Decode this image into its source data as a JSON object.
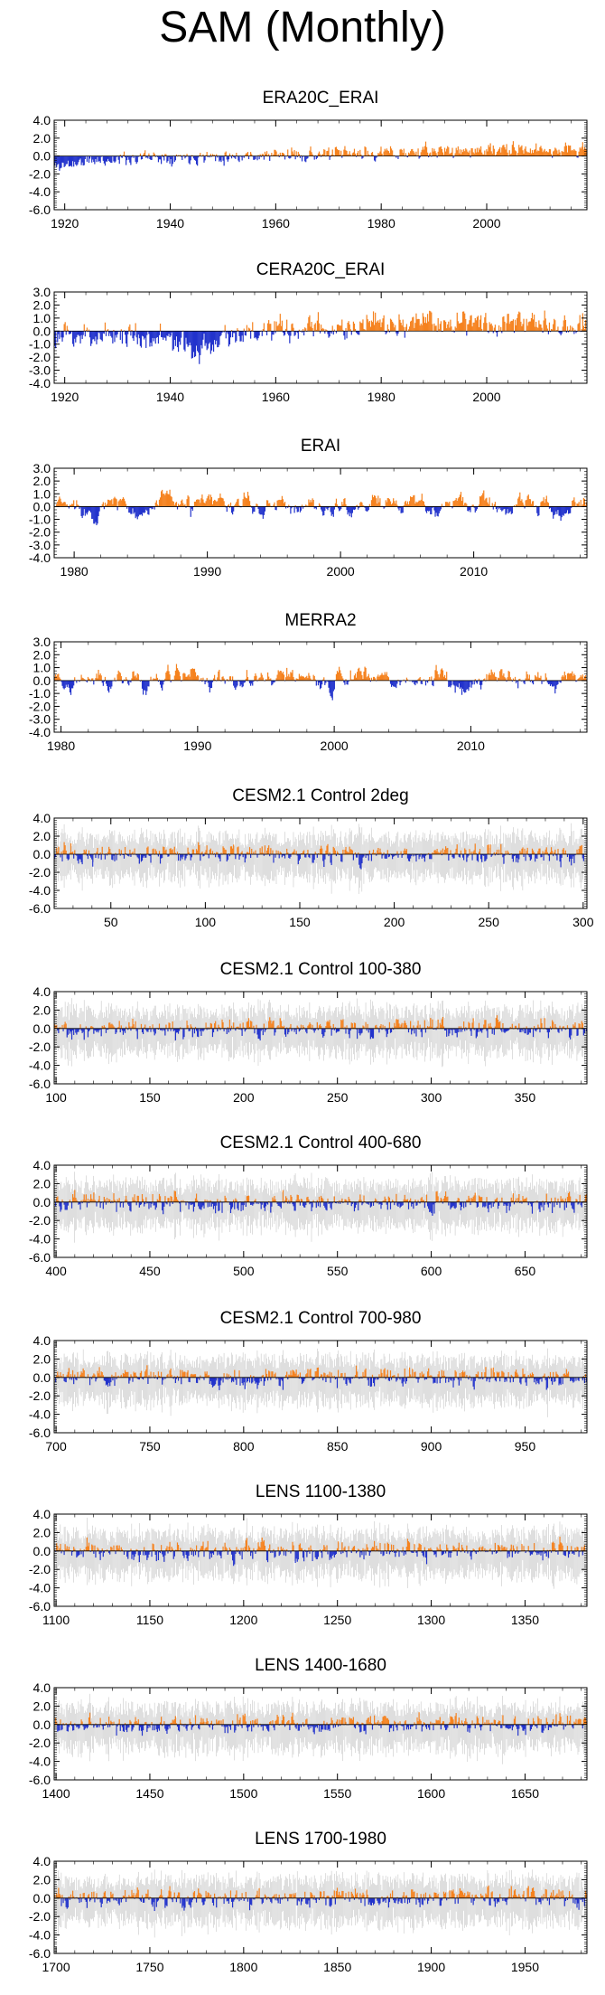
{
  "title": "SAM (Monthly)",
  "colors": {
    "positive": "#f5821f",
    "negative": "#2233cc",
    "spread": "#bdbdbd",
    "axis": "#000000"
  },
  "chart_data": [
    {
      "type": "bar",
      "title": "ERA20C_ERAI",
      "x_range": [
        1918,
        2019
      ],
      "ylim": [
        -6,
        4
      ],
      "y_ticks": [
        4,
        2,
        0,
        -2,
        -4,
        -6
      ],
      "y_tick_labels": [
        "4.0",
        "2.0",
        "0.0",
        "-2.0",
        "-4.0",
        "-6.0"
      ],
      "x_ticks": [
        1920,
        1940,
        1960,
        1980,
        2000
      ],
      "x_tick_labels": [
        "1920",
        "1940",
        "1960",
        "1980",
        "2000"
      ],
      "bias": [
        [
          1918,
          -1.2
        ],
        [
          1924,
          -0.6
        ],
        [
          1935,
          -0.1
        ],
        [
          1950,
          0.0
        ],
        [
          1970,
          0.2
        ],
        [
          1985,
          0.4
        ],
        [
          1995,
          0.6
        ],
        [
          2019,
          0.7
        ]
      ],
      "amp": 0.55,
      "spread": false,
      "seed": 11
    },
    {
      "type": "bar",
      "title": "CERA20C_ERAI",
      "x_range": [
        1918,
        2019
      ],
      "ylim": [
        -4,
        3
      ],
      "y_ticks": [
        3,
        2,
        1,
        0,
        -1,
        -2,
        -3,
        -4
      ],
      "y_tick_labels": [
        "3.0",
        "2.0",
        "1.0",
        "0.0",
        "-1.0",
        "-2.0",
        "-3.0",
        "-4.0"
      ],
      "x_ticks": [
        1920,
        1940,
        1960,
        1980,
        2000
      ],
      "x_tick_labels": [
        "1920",
        "1940",
        "1960",
        "1980",
        "2000"
      ],
      "bias": [
        [
          1918,
          -0.5
        ],
        [
          1930,
          -0.2
        ],
        [
          1940,
          -0.6
        ],
        [
          1944,
          -1.6
        ],
        [
          1947,
          -1.2
        ],
        [
          1950,
          -0.3
        ],
        [
          1965,
          0.1
        ],
        [
          1980,
          0.4
        ],
        [
          1995,
          0.8
        ],
        [
          2019,
          0.6
        ]
      ],
      "amp": 0.7,
      "spread": false,
      "seed": 23
    },
    {
      "type": "bar",
      "title": "ERAI",
      "x_range": [
        1978.5,
        2018.5
      ],
      "ylim": [
        -4,
        3
      ],
      "y_ticks": [
        3,
        2,
        1,
        0,
        -1,
        -2,
        -3,
        -4
      ],
      "y_tick_labels": [
        "3.0",
        "2.0",
        "1.0",
        "0.0",
        "-1.0",
        "-2.0",
        "-3.0",
        "-4.0"
      ],
      "x_ticks": [
        1980,
        1990,
        2000,
        2010
      ],
      "x_tick_labels": [
        "1980",
        "1990",
        "2000",
        "2010"
      ],
      "bias": [
        [
          1978.5,
          0.0
        ],
        [
          2018.5,
          0.1
        ]
      ],
      "amp": 1.0,
      "spread": false,
      "seed": 37,
      "smooth": true
    },
    {
      "type": "bar",
      "title": "MERRA2",
      "x_range": [
        1979.5,
        2018.5
      ],
      "ylim": [
        -4,
        3
      ],
      "y_ticks": [
        3,
        2,
        1,
        0,
        -1,
        -2,
        -3,
        -4
      ],
      "y_tick_labels": [
        "3.0",
        "2.0",
        "1.0",
        "0.0",
        "-1.0",
        "-2.0",
        "-3.0",
        "-4.0"
      ],
      "x_ticks": [
        1980,
        1990,
        2000,
        2010
      ],
      "x_tick_labels": [
        "1980",
        "1990",
        "2000",
        "2010"
      ],
      "bias": [
        [
          1979.5,
          0.0
        ],
        [
          2018.5,
          0.1
        ]
      ],
      "amp": 1.0,
      "spread": false,
      "seed": 41,
      "smooth": true
    },
    {
      "type": "bar",
      "title": "CESM2.1 Control 2deg",
      "x_range": [
        20,
        302
      ],
      "ylim": [
        -6,
        4
      ],
      "y_ticks": [
        4,
        2,
        0,
        -2,
        -4,
        -6
      ],
      "y_tick_labels": [
        "4.0",
        "2.0",
        "0.0",
        "-2.0",
        "-4.0",
        "-6.0"
      ],
      "x_ticks": [
        50,
        100,
        150,
        200,
        250,
        300
      ],
      "x_tick_labels": [
        "50",
        "100",
        "150",
        "200",
        "250",
        "300"
      ],
      "bias": [
        [
          20,
          0.0
        ],
        [
          302,
          0.0
        ]
      ],
      "amp": 0.75,
      "spread": true,
      "seed": 53
    },
    {
      "type": "bar",
      "title": "CESM2.1 Control 100-380",
      "x_range": [
        99,
        383
      ],
      "ylim": [
        -6,
        4
      ],
      "y_ticks": [
        4,
        2,
        0,
        -2,
        -4,
        -6
      ],
      "y_tick_labels": [
        "4.0",
        "2.0",
        "0.0",
        "-2.0",
        "-4.0",
        "-6.0"
      ],
      "x_ticks": [
        100,
        150,
        200,
        250,
        300,
        350
      ],
      "x_tick_labels": [
        "100",
        "150",
        "200",
        "250",
        "300",
        "350"
      ],
      "bias": [
        [
          99,
          0.0
        ],
        [
          383,
          0.0
        ]
      ],
      "amp": 0.75,
      "spread": true,
      "seed": 67
    },
    {
      "type": "bar",
      "title": "CESM2.1 Control 400-680",
      "x_range": [
        399,
        683
      ],
      "ylim": [
        -6,
        4
      ],
      "y_ticks": [
        4,
        2,
        0,
        -2,
        -4,
        -6
      ],
      "y_tick_labels": [
        "4.0",
        "2.0",
        "0.0",
        "-2.0",
        "-4.0",
        "-6.0"
      ],
      "x_ticks": [
        400,
        450,
        500,
        550,
        600,
        650
      ],
      "x_tick_labels": [
        "400",
        "450",
        "500",
        "550",
        "600",
        "650"
      ],
      "bias": [
        [
          399,
          0.0
        ],
        [
          683,
          0.0
        ]
      ],
      "amp": 0.75,
      "spread": true,
      "seed": 71
    },
    {
      "type": "bar",
      "title": "CESM2.1 Control 700-980",
      "x_range": [
        699,
        983
      ],
      "ylim": [
        -6,
        4
      ],
      "y_ticks": [
        4,
        2,
        0,
        -2,
        -4,
        -6
      ],
      "y_tick_labels": [
        "4.0",
        "2.0",
        "0.0",
        "-2.0",
        "-4.0",
        "-6.0"
      ],
      "x_ticks": [
        700,
        750,
        800,
        850,
        900,
        950
      ],
      "x_tick_labels": [
        "700",
        "750",
        "800",
        "850",
        "900",
        "950"
      ],
      "bias": [
        [
          699,
          0.0
        ],
        [
          983,
          0.0
        ]
      ],
      "amp": 0.75,
      "spread": true,
      "seed": 83
    },
    {
      "type": "bar",
      "title": "LENS 1100-1380",
      "x_range": [
        1099,
        1383
      ],
      "ylim": [
        -6,
        4
      ],
      "y_ticks": [
        4,
        2,
        0,
        -2,
        -4,
        -6
      ],
      "y_tick_labels": [
        "4.0",
        "2.0",
        "0.0",
        "-2.0",
        "-4.0",
        "-6.0"
      ],
      "x_ticks": [
        1100,
        1150,
        1200,
        1250,
        1300,
        1350
      ],
      "x_tick_labels": [
        "1100",
        "1150",
        "1200",
        "1250",
        "1300",
        "1350"
      ],
      "bias": [
        [
          1099,
          0.0
        ],
        [
          1383,
          0.0
        ]
      ],
      "amp": 0.75,
      "spread": true,
      "seed": 97
    },
    {
      "type": "bar",
      "title": "LENS 1400-1680",
      "x_range": [
        1399,
        1683
      ],
      "ylim": [
        -6,
        4
      ],
      "y_ticks": [
        4,
        2,
        0,
        -2,
        -4,
        -6
      ],
      "y_tick_labels": [
        "4.0",
        "2.0",
        "0.0",
        "-2.0",
        "-4.0",
        "-6.0"
      ],
      "x_ticks": [
        1400,
        1450,
        1500,
        1550,
        1600,
        1650
      ],
      "x_tick_labels": [
        "1400",
        "1450",
        "1500",
        "1550",
        "1600",
        "1650"
      ],
      "bias": [
        [
          1399,
          0.0
        ],
        [
          1683,
          0.0
        ]
      ],
      "amp": 0.75,
      "spread": true,
      "seed": 101
    },
    {
      "type": "bar",
      "title": "LENS 1700-1980",
      "x_range": [
        1699,
        1983
      ],
      "ylim": [
        -6,
        4
      ],
      "y_ticks": [
        4,
        2,
        0,
        -2,
        -4,
        -6
      ],
      "y_tick_labels": [
        "4.0",
        "2.0",
        "0.0",
        "-2.0",
        "-4.0",
        "-6.0"
      ],
      "x_ticks": [
        1700,
        1750,
        1800,
        1850,
        1900,
        1950
      ],
      "x_tick_labels": [
        "1700",
        "1750",
        "1800",
        "1850",
        "1900",
        "1950"
      ],
      "bias": [
        [
          1699,
          0.0
        ],
        [
          1983,
          0.0
        ]
      ],
      "amp": 0.75,
      "spread": true,
      "seed": 113
    }
  ]
}
